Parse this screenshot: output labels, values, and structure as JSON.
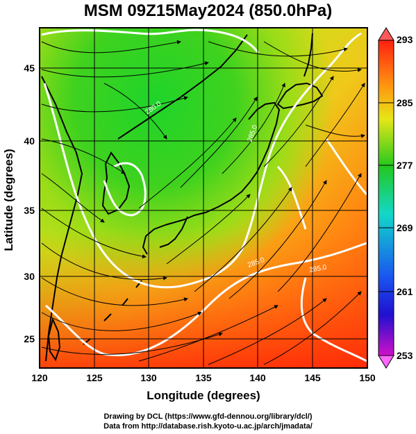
{
  "title": "MSM 09Z15May2024 (850.0hPa)",
  "map": {
    "xlabel": "Longitude (degrees)",
    "ylabel": "Latitude  (degrees)",
    "lon_range": [
      120,
      150
    ],
    "lat_range": [
      22.5,
      47.5
    ],
    "x_ticks": [
      "120",
      "125",
      "130",
      "135",
      "140",
      "145",
      "150"
    ],
    "y_ticks": [
      "25",
      "30",
      "35",
      "40",
      "45"
    ],
    "contour_labels": [
      "280.0",
      "285.0",
      "285.0",
      "285.0"
    ],
    "colors": {
      "cold": "#2ecc1e",
      "mid": "#d6e81a",
      "warm": "#ff3a0a",
      "contour": "#ffffff",
      "streamline": "#000000"
    }
  },
  "colorbar": {
    "tick_labels": [
      "293",
      "285",
      "277",
      "269",
      "261",
      "253"
    ],
    "range": [
      253,
      293
    ]
  },
  "credits": {
    "line1": "Drawing by DCL (https://www.gfd-dennou.org/library/dcl/)",
    "line2": "Data from http://database.rish.kyoto-u.ac.jp/arch/jmadata/"
  }
}
